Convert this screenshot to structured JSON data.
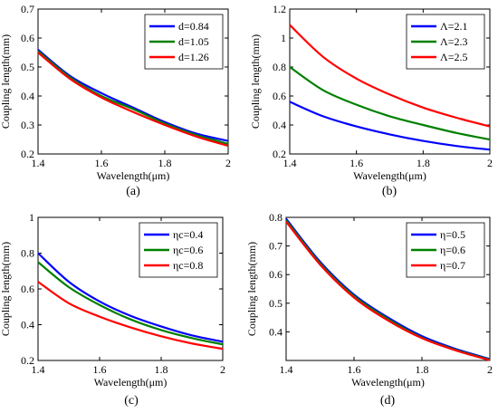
{
  "chart_data": [
    {
      "type": "line",
      "panel_label": "(a)",
      "xlabel": "Wavelength(μm)",
      "ylabel": "Coupling length(mm)",
      "xlim": [
        1.4,
        2.0
      ],
      "ylim": [
        0.2,
        0.7
      ],
      "xticks": [
        1.4,
        1.6,
        1.8,
        2.0
      ],
      "xtick_labels": [
        "1.4",
        "1.6",
        "1.8",
        "2"
      ],
      "yticks": [
        0.2,
        0.3,
        0.4,
        0.5,
        0.6,
        0.7
      ],
      "ytick_labels": [
        "0.2",
        "0.3",
        "0.4",
        "0.5",
        "0.6",
        "0.7"
      ],
      "legend_position": "top-right",
      "x": [
        1.4,
        1.5,
        1.6,
        1.7,
        1.8,
        1.9,
        2.0
      ],
      "series": [
        {
          "name": "d=0.84",
          "color": "#0000ff",
          "values": [
            0.56,
            0.47,
            0.41,
            0.36,
            0.31,
            0.27,
            0.245
          ]
        },
        {
          "name": "d=1.05",
          "color": "#008000",
          "values": [
            0.555,
            0.465,
            0.4,
            0.355,
            0.305,
            0.265,
            0.235
          ]
        },
        {
          "name": "d=1.26",
          "color": "#ff0000",
          "values": [
            0.55,
            0.46,
            0.395,
            0.345,
            0.3,
            0.26,
            0.228
          ]
        }
      ]
    },
    {
      "type": "line",
      "panel_label": "(b)",
      "xlabel": "Wavelength(μm)",
      "ylabel": "Coupling length(mm)",
      "xlim": [
        1.4,
        2.0
      ],
      "ylim": [
        0.2,
        1.2
      ],
      "xticks": [
        1.4,
        1.6,
        1.8,
        2.0
      ],
      "xtick_labels": [
        "1.4",
        "1.6",
        "1.8",
        "2"
      ],
      "yticks": [
        0.2,
        0.4,
        0.6,
        0.8,
        1.0,
        1.2
      ],
      "ytick_labels": [
        "0.2",
        "0.4",
        "0.6",
        "0.8",
        "1",
        "1.2"
      ],
      "legend_position": "top-right",
      "x": [
        1.4,
        1.5,
        1.6,
        1.7,
        1.8,
        1.9,
        2.0
      ],
      "series": [
        {
          "name": "Λ=2.1",
          "color": "#0000ff",
          "values": [
            0.56,
            0.46,
            0.39,
            0.335,
            0.29,
            0.255,
            0.23
          ]
        },
        {
          "name": "Λ=2.3",
          "color": "#008000",
          "values": [
            0.8,
            0.64,
            0.54,
            0.46,
            0.4,
            0.345,
            0.3
          ]
        },
        {
          "name": "Λ=2.5",
          "color": "#ff0000",
          "values": [
            1.09,
            0.87,
            0.72,
            0.61,
            0.52,
            0.45,
            0.39
          ]
        }
      ]
    },
    {
      "type": "line",
      "panel_label": "(c)",
      "xlabel": "Wavelength(μm)",
      "ylabel": "Coupling length(mm)",
      "xlim": [
        1.4,
        2.0
      ],
      "ylim": [
        0.2,
        1.0
      ],
      "xticks": [
        1.4,
        1.6,
        1.8,
        2.0
      ],
      "xtick_labels": [
        "1.4",
        "1.6",
        "1.8",
        "2"
      ],
      "yticks": [
        0.2,
        0.4,
        0.6,
        0.8,
        1.0
      ],
      "ytick_labels": [
        "0.2",
        "0.4",
        "0.6",
        "0.8",
        "1"
      ],
      "legend_position": "top-right",
      "x": [
        1.4,
        1.5,
        1.6,
        1.7,
        1.8,
        1.9,
        2.0
      ],
      "series": [
        {
          "name": "ηc=0.4",
          "color": "#0000ff",
          "values": [
            0.8,
            0.64,
            0.53,
            0.45,
            0.39,
            0.34,
            0.305
          ]
        },
        {
          "name": "ηc=0.6",
          "color": "#008000",
          "values": [
            0.75,
            0.61,
            0.51,
            0.43,
            0.37,
            0.325,
            0.29
          ]
        },
        {
          "name": "ηc=0.8",
          "color": "#ff0000",
          "values": [
            0.64,
            0.52,
            0.445,
            0.385,
            0.335,
            0.295,
            0.265
          ]
        }
      ]
    },
    {
      "type": "line",
      "panel_label": "(d)",
      "xlabel": "Wavelength(μm)",
      "ylabel": "Coupling length(mm)",
      "xlim": [
        1.4,
        2.0
      ],
      "ylim": [
        0.3,
        0.8
      ],
      "xticks": [
        1.4,
        1.6,
        1.8,
        2.0
      ],
      "xtick_labels": [
        "1.4",
        "1.6",
        "1.8",
        "2"
      ],
      "yticks": [
        0.4,
        0.5,
        0.6,
        0.7,
        0.8
      ],
      "ytick_labels": [
        "0.4",
        "0.5",
        "0.6",
        "0.7",
        "0.8"
      ],
      "legend_position": "top-right",
      "x": [
        1.4,
        1.5,
        1.6,
        1.7,
        1.8,
        1.9,
        2.0
      ],
      "series": [
        {
          "name": "η=0.5",
          "color": "#0000ff",
          "values": [
            0.795,
            0.645,
            0.53,
            0.45,
            0.385,
            0.34,
            0.305
          ]
        },
        {
          "name": "η=0.6",
          "color": "#008000",
          "values": [
            0.79,
            0.64,
            0.525,
            0.445,
            0.38,
            0.337,
            0.303
          ]
        },
        {
          "name": "η=0.7",
          "color": "#ff0000",
          "values": [
            0.785,
            0.635,
            0.52,
            0.44,
            0.378,
            0.335,
            0.301
          ]
        }
      ]
    }
  ]
}
